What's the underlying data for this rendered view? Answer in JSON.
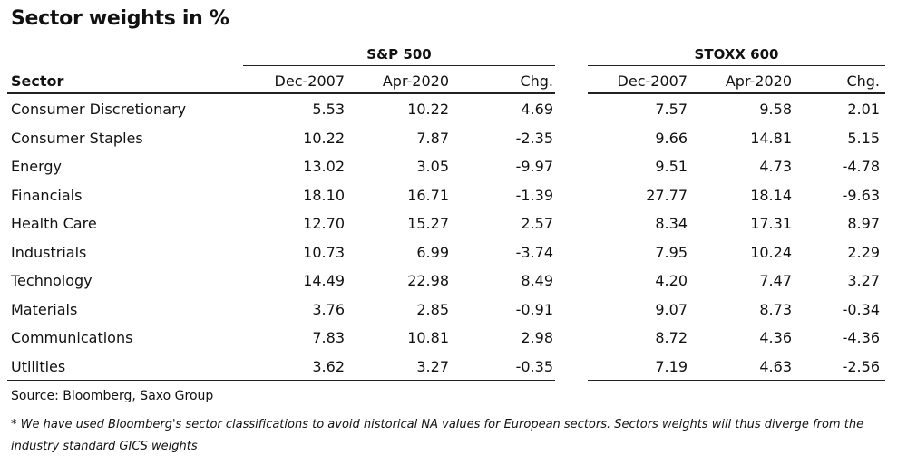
{
  "title": "Sector weights in %",
  "groups": [
    "S&P 500",
    "STOXX 600"
  ],
  "headers": {
    "sector": "Sector",
    "cols": [
      "Dec-2007",
      "Apr-2020",
      "Chg.",
      "Dec-2007",
      "Apr-2020",
      "Chg."
    ]
  },
  "rows": [
    {
      "sector": "Consumer Discretionary",
      "v": [
        "5.53",
        "10.22",
        "4.69",
        "7.57",
        "9.58",
        "2.01"
      ]
    },
    {
      "sector": "Consumer Staples",
      "v": [
        "10.22",
        "7.87",
        "-2.35",
        "9.66",
        "14.81",
        "5.15"
      ]
    },
    {
      "sector": "Energy",
      "v": [
        "13.02",
        "3.05",
        "-9.97",
        "9.51",
        "4.73",
        "-4.78"
      ]
    },
    {
      "sector": "Financials",
      "v": [
        "18.10",
        "16.71",
        "-1.39",
        "27.77",
        "18.14",
        "-9.63"
      ]
    },
    {
      "sector": "Health Care",
      "v": [
        "12.70",
        "15.27",
        "2.57",
        "8.34",
        "17.31",
        "8.97"
      ]
    },
    {
      "sector": "Industrials",
      "v": [
        "10.73",
        "6.99",
        "-3.74",
        "7.95",
        "10.24",
        "2.29"
      ]
    },
    {
      "sector": "Technology",
      "v": [
        "14.49",
        "22.98",
        "8.49",
        "4.20",
        "7.47",
        "3.27"
      ]
    },
    {
      "sector": "Materials",
      "v": [
        "3.76",
        "2.85",
        "-0.91",
        "9.07",
        "8.73",
        "-0.34"
      ]
    },
    {
      "sector": "Communications",
      "v": [
        "7.83",
        "10.81",
        "2.98",
        "8.72",
        "4.36",
        "-4.36"
      ]
    },
    {
      "sector": "Utilities",
      "v": [
        "3.62",
        "3.27",
        "-0.35",
        "7.19",
        "4.63",
        "-2.56"
      ]
    }
  ],
  "source": "Source: Bloomberg, Saxo Group",
  "note": "* We have used Bloomberg's sector classifications to avoid historical NA values for European sectors. Sectors weights will thus diverge from the industry standard GICS weights"
}
